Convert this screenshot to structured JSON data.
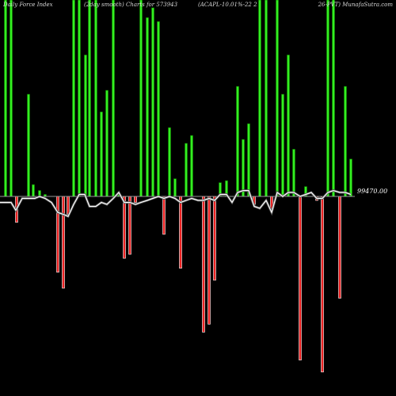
{
  "header": {
    "left": "Daily Force  Index",
    "middle": "(2day smooth) Charts for 573943",
    "symbol": "(ACAPL-10.01%-22                    2",
    "right": "26-PVT) MunafaSutra.com"
  },
  "chart_data": {
    "type": "bar",
    "title": "Daily Force Index",
    "subtitle": "(2day smooth) Charts for 573943 (ACAPL-10.01%-22 2 26-PVT) MunafaSutra.com",
    "zero_line_label": "99470.00",
    "colors": {
      "positive": "#33ee22",
      "negative": "#ee2222",
      "smooth_line": "#ffffff",
      "background": "#000000"
    },
    "bars": [
      {
        "x": 7,
        "v": 1.0
      },
      {
        "x": 14,
        "v": 1.0
      },
      {
        "x": 21,
        "v": -0.13
      },
      {
        "x": 36,
        "v": 0.52
      },
      {
        "x": 42,
        "v": 0.06
      },
      {
        "x": 50,
        "v": 0.03
      },
      {
        "x": 57,
        "v": 0.01
      },
      {
        "x": 73,
        "v": -0.38
      },
      {
        "x": 80,
        "v": -0.46
      },
      {
        "x": 86,
        "v": -0.09
      },
      {
        "x": 93,
        "v": 1.0
      },
      {
        "x": 100,
        "v": 1.0
      },
      {
        "x": 108,
        "v": 0.72
      },
      {
        "x": 113,
        "v": 1.0
      },
      {
        "x": 121,
        "v": 1.0
      },
      {
        "x": 128,
        "v": 0.43
      },
      {
        "x": 135,
        "v": 0.54
      },
      {
        "x": 143,
        "v": 1.0
      },
      {
        "x": 150,
        "v": 0.02
      },
      {
        "x": 157,
        "v": -0.31
      },
      {
        "x": 164,
        "v": -0.29
      },
      {
        "x": 171,
        "v": -0.03
      },
      {
        "x": 178,
        "v": 1.0
      },
      {
        "x": 186,
        "v": 0.91
      },
      {
        "x": 193,
        "v": 0.96
      },
      {
        "x": 200,
        "v": 0.89
      },
      {
        "x": 207,
        "v": -0.19
      },
      {
        "x": 214,
        "v": 0.35
      },
      {
        "x": 221,
        "v": 0.09
      },
      {
        "x": 228,
        "v": -0.36
      },
      {
        "x": 235,
        "v": 0.27
      },
      {
        "x": 242,
        "v": 0.31
      },
      {
        "x": 257,
        "v": -0.68
      },
      {
        "x": 264,
        "v": -0.64
      },
      {
        "x": 271,
        "v": -0.42
      },
      {
        "x": 278,
        "v": 0.07
      },
      {
        "x": 286,
        "v": 0.08
      },
      {
        "x": 300,
        "v": 0.56
      },
      {
        "x": 307,
        "v": 0.29
      },
      {
        "x": 314,
        "v": 0.37
      },
      {
        "x": 321,
        "v": -0.04
      },
      {
        "x": 328,
        "v": 1.0
      },
      {
        "x": 336,
        "v": 1.0
      },
      {
        "x": 343,
        "v": -0.06
      },
      {
        "x": 350,
        "v": 1.0
      },
      {
        "x": 357,
        "v": 0.52
      },
      {
        "x": 364,
        "v": 0.72
      },
      {
        "x": 371,
        "v": 0.24
      },
      {
        "x": 379,
        "v": -0.82
      },
      {
        "x": 386,
        "v": 0.05
      },
      {
        "x": 400,
        "v": -0.02
      },
      {
        "x": 407,
        "v": -0.88
      },
      {
        "x": 414,
        "v": 1.0
      },
      {
        "x": 421,
        "v": 1.0
      },
      {
        "x": 429,
        "v": -0.51
      },
      {
        "x": 436,
        "v": 0.56
      },
      {
        "x": 443,
        "v": 0.19
      }
    ],
    "smooth": [
      [
        0,
        -0.03
      ],
      [
        14,
        -0.03
      ],
      [
        20,
        -0.07
      ],
      [
        28,
        -0.01
      ],
      [
        36,
        -0.01
      ],
      [
        44,
        -0.01
      ],
      [
        50,
        0.0
      ],
      [
        57,
        -0.01
      ],
      [
        65,
        -0.03
      ],
      [
        73,
        -0.08
      ],
      [
        80,
        -0.09
      ],
      [
        86,
        -0.1
      ],
      [
        93,
        -0.04
      ],
      [
        100,
        0.01
      ],
      [
        107,
        0.01
      ],
      [
        113,
        -0.05
      ],
      [
        121,
        -0.05
      ],
      [
        128,
        -0.03
      ],
      [
        135,
        -0.04
      ],
      [
        143,
        -0.01
      ],
      [
        150,
        0.02
      ],
      [
        157,
        -0.03
      ],
      [
        164,
        -0.03
      ],
      [
        171,
        -0.04
      ],
      [
        178,
        -0.03
      ],
      [
        186,
        -0.02
      ],
      [
        193,
        -0.01
      ],
      [
        200,
        0.0
      ],
      [
        207,
        -0.01
      ],
      [
        214,
        0.0
      ],
      [
        221,
        -0.01
      ],
      [
        228,
        -0.03
      ],
      [
        235,
        -0.02
      ],
      [
        242,
        -0.01
      ],
      [
        250,
        -0.02
      ],
      [
        257,
        -0.02
      ],
      [
        264,
        -0.01
      ],
      [
        271,
        -0.02
      ],
      [
        278,
        0.01
      ],
      [
        286,
        0.01
      ],
      [
        293,
        -0.03
      ],
      [
        300,
        0.02
      ],
      [
        307,
        0.03
      ],
      [
        314,
        0.03
      ],
      [
        321,
        -0.05
      ],
      [
        328,
        -0.06
      ],
      [
        336,
        -0.02
      ],
      [
        343,
        -0.08
      ],
      [
        350,
        0.02
      ],
      [
        357,
        0.0
      ],
      [
        364,
        0.02
      ],
      [
        371,
        0.02
      ],
      [
        379,
        0.0
      ],
      [
        386,
        0.01
      ],
      [
        393,
        0.02
      ],
      [
        400,
        -0.01
      ],
      [
        407,
        -0.01
      ],
      [
        414,
        0.02
      ],
      [
        421,
        0.03
      ],
      [
        429,
        0.02
      ],
      [
        436,
        0.02
      ],
      [
        443,
        0.01
      ]
    ]
  }
}
